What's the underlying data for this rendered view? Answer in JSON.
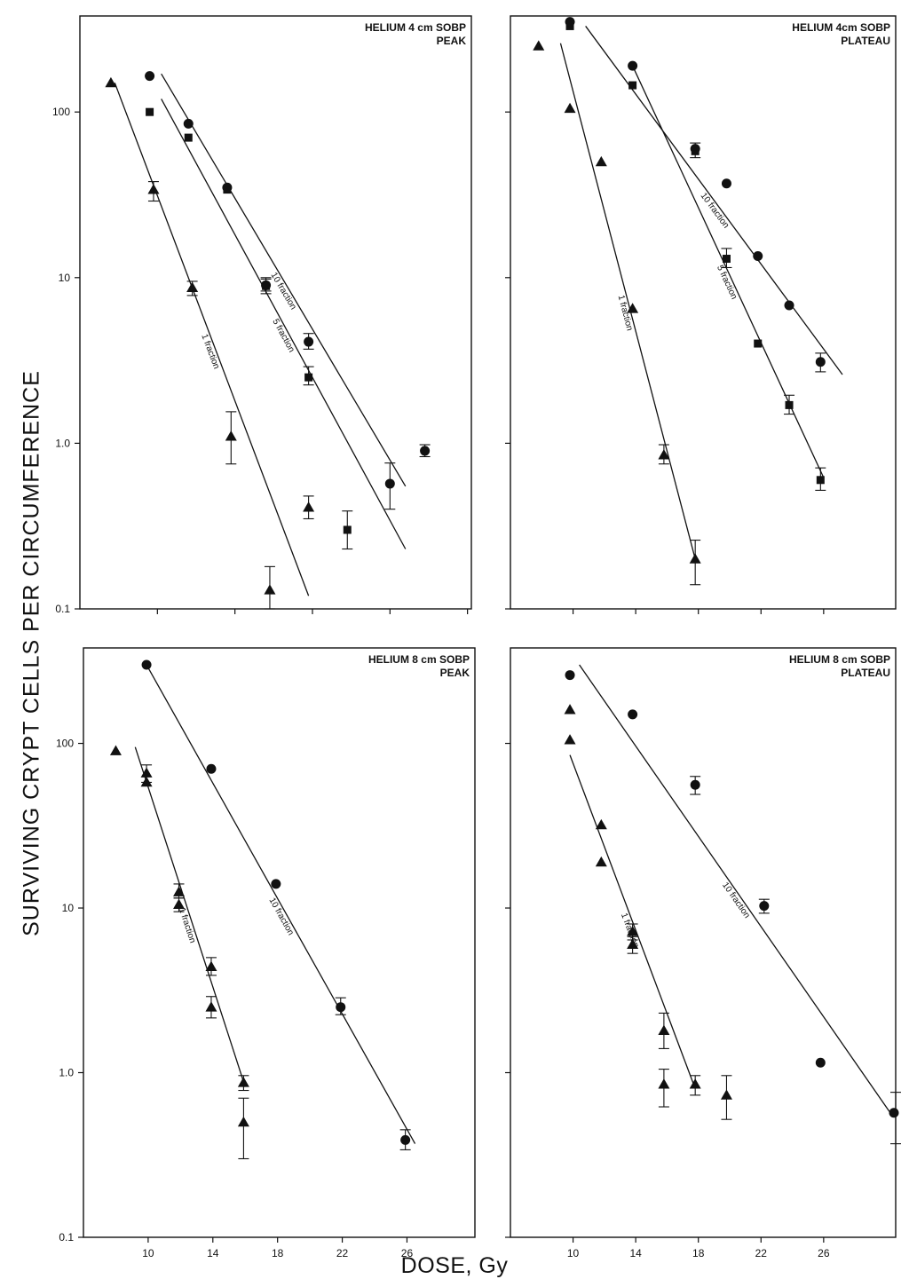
{
  "figure": {
    "ylabel": "SURVIVING CRYPT CELLS PER CIRCUMFERENCE",
    "xlabel": "DOSE, Gy"
  },
  "chart_data": [
    {
      "type": "scatter",
      "title": "HELIUM 4 cm SOBP",
      "subtitle": "PEAK",
      "yscale": "log",
      "xlim": [
        6,
        26.2
      ],
      "ylim": [
        0.1,
        380
      ],
      "yticks": [
        0.1,
        1.0,
        10,
        100
      ],
      "yticklabels": [
        "0.1",
        "1.0",
        "10",
        "100"
      ],
      "xticks": [
        10,
        14,
        18,
        22,
        26
      ],
      "xticklabels": [],
      "series": [
        {
          "name": "1 fraction",
          "marker": "triangle",
          "points": [
            [
              7.6,
              150
            ],
            [
              9.8,
              34
            ],
            [
              11.8,
              8.7
            ],
            [
              13.8,
              1.1
            ],
            [
              15.8,
              0.13
            ],
            [
              17.8,
              0.41
            ]
          ],
          "errors": [
            [
              9.8,
              29,
              38
            ],
            [
              11.8,
              7.8,
              9.5
            ],
            [
              13.8,
              0.75,
              1.55
            ],
            [
              15.8,
              0.1,
              0.18
            ],
            [
              17.8,
              0.35,
              0.48
            ]
          ]
        },
        {
          "name": "5 fraction",
          "marker": "square",
          "points": [
            [
              9.6,
              100
            ],
            [
              11.6,
              70
            ],
            [
              13.6,
              34
            ],
            [
              15.6,
              8.9
            ],
            [
              17.8,
              2.5
            ],
            [
              19.8,
              0.3
            ]
          ],
          "errors": [
            [
              15.6,
              8,
              10
            ],
            [
              17.8,
              2.25,
              2.9
            ],
            [
              19.8,
              0.23,
              0.39
            ]
          ]
        },
        {
          "name": "10 fraction",
          "marker": "circle",
          "points": [
            [
              9.6,
              165
            ],
            [
              11.6,
              85
            ],
            [
              13.6,
              35
            ],
            [
              15.6,
              9
            ],
            [
              17.8,
              4.1
            ],
            [
              22,
              0.57
            ],
            [
              23.8,
              0.9
            ]
          ],
          "errors": [
            [
              15.6,
              8.3,
              9.8
            ],
            [
              17.8,
              3.7,
              4.6
            ],
            [
              22,
              0.4,
              0.76
            ],
            [
              23.8,
              0.83,
              0.98
            ]
          ]
        }
      ],
      "lines": [
        {
          "series": "1 fraction",
          "from": [
            7.8,
            150
          ],
          "to": [
            17.8,
            0.12
          ],
          "label": "1 fraction"
        },
        {
          "series": "5 fraction",
          "from": [
            10.2,
            120
          ],
          "to": [
            22.8,
            0.23
          ],
          "label": "5 fraction"
        },
        {
          "series": "10 fraction",
          "from": [
            10.2,
            170
          ],
          "to": [
            22.8,
            0.55
          ],
          "label": "10 fraction"
        }
      ]
    },
    {
      "type": "scatter",
      "title": "HELIUM 4cm SOBP",
      "subtitle": "PLATEAU",
      "yscale": "log",
      "xlim": [
        6,
        30.6
      ],
      "ylim": [
        0.1,
        380
      ],
      "yticks": [
        0.1,
        1.0,
        10,
        100
      ],
      "yticklabels": [],
      "xticks": [
        10,
        14,
        18,
        22,
        26
      ],
      "xticklabels": [],
      "series": [
        {
          "name": "1 fraction",
          "marker": "triangle",
          "points": [
            [
              7.8,
              250
            ],
            [
              9.8,
              105
            ],
            [
              11.8,
              50
            ],
            [
              13.8,
              6.5
            ],
            [
              15.8,
              0.85
            ],
            [
              17.8,
              0.2
            ]
          ],
          "errors": [
            [
              15.8,
              0.75,
              0.98
            ],
            [
              17.8,
              0.14,
              0.26
            ]
          ]
        },
        {
          "name": "5 fraction",
          "marker": "square",
          "points": [
            [
              9.8,
              330
            ],
            [
              13.8,
              145
            ],
            [
              17.8,
              58
            ],
            [
              19.8,
              13
            ],
            [
              21.8,
              4
            ],
            [
              23.8,
              1.7
            ],
            [
              25.8,
              0.6
            ]
          ],
          "errors": [
            [
              17.8,
              53,
              65
            ],
            [
              19.8,
              11.5,
              15
            ],
            [
              23.8,
              1.5,
              1.95
            ],
            [
              25.8,
              0.52,
              0.71
            ]
          ]
        },
        {
          "name": "10 fraction",
          "marker": "circle",
          "points": [
            [
              9.8,
              350
            ],
            [
              13.8,
              190
            ],
            [
              17.8,
              60
            ],
            [
              19.8,
              37
            ],
            [
              21.8,
              13.5
            ],
            [
              23.8,
              6.8
            ],
            [
              25.8,
              3.1
            ]
          ],
          "errors": [
            [
              25.8,
              2.7,
              3.5
            ]
          ]
        }
      ],
      "lines": [
        {
          "series": "1 fraction",
          "from": [
            9.2,
            260
          ],
          "to": [
            17.8,
            0.2
          ],
          "label": "1 fraction"
        },
        {
          "series": "5 fraction",
          "from": [
            13.8,
            190
          ],
          "to": [
            26,
            0.62
          ],
          "label": "5 fraction"
        },
        {
          "series": "10 fraction",
          "from": [
            10.8,
            330
          ],
          "to": [
            27.2,
            2.6
          ],
          "label": "10 fraction"
        }
      ]
    },
    {
      "type": "scatter",
      "title": "HELIUM 8 cm SOBP",
      "subtitle": "PEAK",
      "yscale": "log",
      "xlim": [
        6,
        30.2
      ],
      "ylim": [
        0.1,
        380
      ],
      "yticks": [
        0.1,
        1.0,
        10,
        100
      ],
      "yticklabels": [
        "0.1",
        "1.0",
        "10",
        "100"
      ],
      "xticks": [
        10,
        14,
        18,
        22,
        26
      ],
      "xticklabels": [
        "10",
        "14",
        "18",
        "22",
        "26"
      ],
      "series": [
        {
          "name": "1 fraction",
          "marker": "triangle",
          "points": [
            [
              8,
              90
            ],
            [
              9.9,
              66
            ],
            [
              9.9,
              58
            ],
            [
              11.9,
              12.5
            ],
            [
              11.9,
              10.5
            ],
            [
              13.9,
              4.4
            ],
            [
              13.9,
              2.5
            ],
            [
              15.9,
              0.87
            ],
            [
              15.9,
              0.5
            ]
          ],
          "errors": [
            [
              9.9,
              58,
              74
            ],
            [
              11.9,
              11.5,
              14
            ],
            [
              11.9,
              9.5,
              11.5
            ],
            [
              13.9,
              3.9,
              5
            ],
            [
              13.9,
              2.15,
              2.9
            ],
            [
              15.9,
              0.78,
              0.96
            ],
            [
              15.9,
              0.3,
              0.7
            ]
          ]
        },
        {
          "name": "10 fraction",
          "marker": "circle",
          "points": [
            [
              9.9,
              300
            ],
            [
              13.9,
              70
            ],
            [
              17.9,
              14
            ],
            [
              21.9,
              2.5
            ],
            [
              25.9,
              0.39
            ]
          ],
          "errors": [
            [
              21.9,
              2.25,
              2.85
            ],
            [
              25.9,
              0.34,
              0.45
            ]
          ]
        }
      ],
      "lines": [
        {
          "series": "1 fraction",
          "from": [
            9.2,
            95
          ],
          "to": [
            16,
            0.82
          ],
          "label": "1 fraction"
        },
        {
          "series": "10 fraction",
          "from": [
            9.9,
            300
          ],
          "to": [
            26.5,
            0.37
          ],
          "label": "10 fraction"
        }
      ]
    },
    {
      "type": "scatter",
      "title": "HELIUM 8 cm SOBP",
      "subtitle": "PLATEAU",
      "yscale": "log",
      "xlim": [
        6,
        30.6
      ],
      "ylim": [
        0.1,
        380
      ],
      "yticks": [
        0.1,
        1.0,
        10,
        100
      ],
      "yticklabels": [],
      "xticks": [
        10,
        14,
        18,
        22,
        26
      ],
      "xticklabels": [
        "10",
        "14",
        "18",
        "22",
        "26"
      ],
      "series": [
        {
          "name": "1 fraction",
          "marker": "triangle",
          "points": [
            [
              9.8,
              160
            ],
            [
              9.8,
              105
            ],
            [
              11.8,
              32
            ],
            [
              11.8,
              19
            ],
            [
              13.8,
              7.2
            ],
            [
              13.8,
              6
            ],
            [
              15.8,
              1.8
            ],
            [
              15.8,
              0.85
            ],
            [
              17.8,
              0.85
            ],
            [
              19.8,
              0.73
            ]
          ],
          "errors": [
            [
              13.8,
              6.4,
              8
            ],
            [
              13.8,
              5.3,
              6.7
            ],
            [
              15.8,
              1.4,
              2.3
            ],
            [
              15.8,
              0.62,
              1.05
            ],
            [
              17.8,
              0.73,
              0.96
            ],
            [
              19.8,
              0.52,
              0.96
            ]
          ]
        },
        {
          "name": "10 fraction",
          "marker": "circle",
          "points": [
            [
              9.8,
              260
            ],
            [
              13.8,
              150
            ],
            [
              17.8,
              56
            ],
            [
              22.2,
              10.3
            ],
            [
              25.8,
              1.15
            ],
            [
              30.6,
              0.57
            ]
          ],
          "errors": [
            [
              17.8,
              49,
              63
            ],
            [
              22.2,
              9.3,
              11.3
            ],
            [
              30.6,
              0.37,
              0.76
            ]
          ]
        }
      ],
      "lines": [
        {
          "series": "1 fraction",
          "from": [
            9.8,
            85
          ],
          "to": [
            17.8,
            0.8
          ],
          "label": "1 fraction"
        },
        {
          "series": "10 fraction",
          "from": [
            10.4,
            300
          ],
          "to": [
            30.2,
            0.58
          ],
          "label": "10 fraction"
        }
      ]
    }
  ]
}
